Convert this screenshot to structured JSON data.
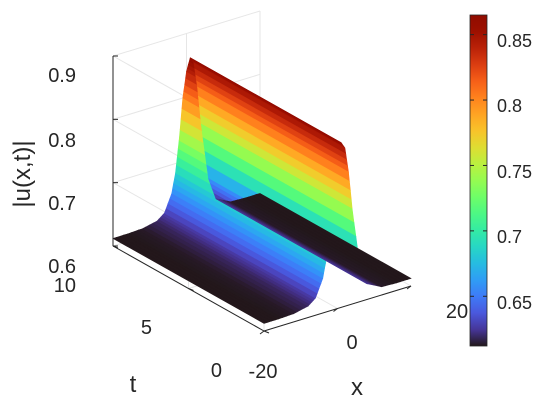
{
  "chart_data": {
    "type": "surface",
    "zlabel": "|u(x,t)|",
    "xlabel": "x",
    "ylabel": "t",
    "xlim": [
      -20,
      20
    ],
    "tlim": [
      0,
      10
    ],
    "zlim": [
      0.6,
      0.9
    ],
    "x_ticks": [
      "-20",
      "0",
      "20"
    ],
    "t_ticks": [
      "0",
      "5",
      "10"
    ],
    "z_ticks": [
      "0.6",
      "0.7",
      "0.8",
      "0.9"
    ],
    "surface": {
      "x": [
        -20,
        -16,
        -12,
        -8,
        -6,
        -4,
        -3,
        -2,
        -1,
        0,
        1,
        2,
        3,
        4,
        6,
        8,
        12,
        16,
        20
      ],
      "profile_abs_u": [
        0.612,
        0.612,
        0.613,
        0.618,
        0.627,
        0.655,
        0.685,
        0.735,
        0.8,
        0.84,
        0.86,
        0.85,
        0.81,
        0.75,
        0.66,
        0.625,
        0.613,
        0.612,
        0.612
      ],
      "t_dependence": "constant in t (stationary ridge)",
      "peak": 0.865,
      "base": 0.612
    },
    "colorbar": {
      "colormap": "turbo",
      "range": [
        0.612,
        0.865
      ],
      "ticks": [
        "0.65",
        "0.7",
        "0.75",
        "0.8",
        "0.85"
      ],
      "tick_values": [
        0.65,
        0.7,
        0.75,
        0.8,
        0.85
      ]
    },
    "grid": true
  }
}
